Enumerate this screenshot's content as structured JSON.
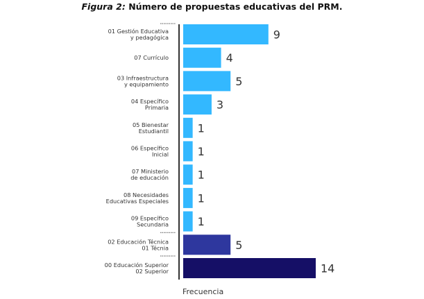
{
  "chart_data": {
    "type": "bar",
    "orientation": "horizontal",
    "title_prefix": "Figura 2:",
    "title": "Número de propuestas educativas del PRM.",
    "xlabel": "Frecuencia",
    "ylabel": "",
    "categories": [
      [
        "01 Gestión Educativa",
        "y pedagógica"
      ],
      [
        "07 Currículo"
      ],
      [
        "03 Infraestructura",
        "y equipamiento"
      ],
      [
        "04 Específico",
        "Primaria"
      ],
      [
        "05 Bienestar",
        "Estudiantil"
      ],
      [
        "06 Específico",
        "Inicial"
      ],
      [
        "07 Ministerio",
        "de educación"
      ],
      [
        "08 Necesidades",
        "Educativas Especiales"
      ],
      [
        "09 Específico",
        "Secundaria"
      ],
      [
        "02 Educación Técnica",
        "01 Técnia"
      ],
      [
        "00 Educación Superior",
        "02 Superior"
      ]
    ],
    "values": [
      9,
      4,
      5,
      3,
      1,
      1,
      1,
      1,
      1,
      5,
      14
    ],
    "groups": [
      0,
      0,
      0,
      0,
      0,
      0,
      0,
      0,
      0,
      1,
      2
    ],
    "group_colors": [
      "#33B8FF",
      "#2E379E",
      "#150F66"
    ],
    "xlim": [
      0,
      14
    ],
    "grid": false,
    "legend": "none"
  }
}
